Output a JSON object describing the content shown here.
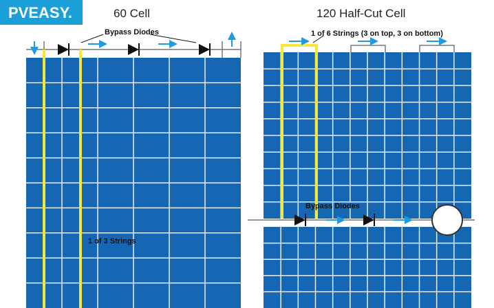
{
  "logo": "PVEASY.",
  "left": {
    "title": "60 Cell",
    "diodes_label": "Bypass Diodes",
    "string_label": "1 of 3 Strings"
  },
  "right": {
    "title": "120 Half-Cut Cell",
    "string_label": "1 of 6 Strings (3 on top, 3 on bottom)",
    "diodes_label": "Bypass Diodes"
  }
}
